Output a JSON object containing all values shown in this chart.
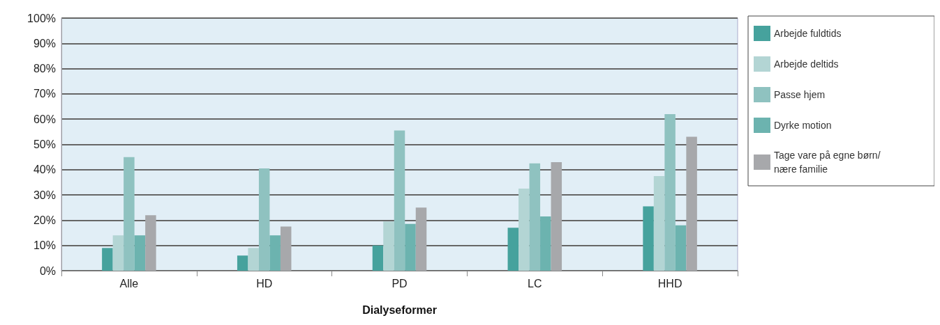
{
  "chart_data": {
    "type": "bar",
    "xlabel": "Dialyseformer",
    "categories": [
      "Alle",
      "HD",
      "PD",
      "LC",
      "HHD"
    ],
    "series": [
      {
        "name": "Arbejde fuldtids",
        "color": "#46a29d",
        "values": [
          9,
          6,
          10,
          17,
          25.5
        ]
      },
      {
        "name": "Arbejde deltids",
        "color": "#b3d5d4",
        "values": [
          14,
          9,
          19.5,
          32.5,
          37.5
        ]
      },
      {
        "name": "Passe hjem",
        "color": "#8fc2c0",
        "values": [
          45,
          40.5,
          55.5,
          42.5,
          62
        ]
      },
      {
        "name": "Dyrke motion",
        "color": "#6cb3af",
        "values": [
          14,
          14,
          18.5,
          21.5,
          18
        ]
      },
      {
        "name": "Tage vare på egne børn/ nære familie",
        "color": "#a7a8ab",
        "values": [
          22,
          17.5,
          25,
          43,
          53
        ]
      }
    ],
    "ylim": [
      0,
      100
    ],
    "yticks": [
      {
        "value": 0,
        "label": "0%"
      },
      {
        "value": 10,
        "label": "10%"
      },
      {
        "value": 20,
        "label": "20%"
      },
      {
        "value": 30,
        "label": "30%"
      },
      {
        "value": 40,
        "label": "40%"
      },
      {
        "value": 50,
        "label": "50%"
      },
      {
        "value": 60,
        "label": "60%"
      },
      {
        "value": 70,
        "label": "70%"
      },
      {
        "value": 80,
        "label": "80%"
      },
      {
        "value": 90,
        "label": "90%"
      },
      {
        "value": 100,
        "label": "100%"
      }
    ],
    "grid": "y",
    "legend": "right"
  }
}
